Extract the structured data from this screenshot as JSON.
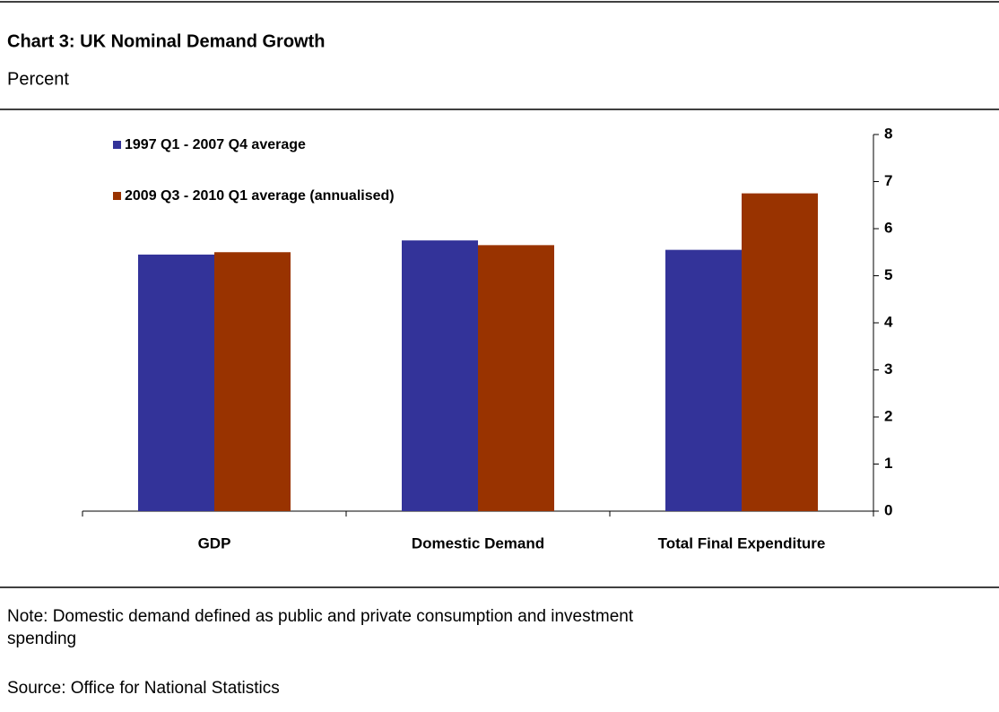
{
  "chart_data": {
    "type": "bar",
    "title": "Chart 3: UK Nominal Demand Growth",
    "subtitle": "Percent",
    "categories": [
      "GDP",
      "Domestic Demand",
      "Total Final Expenditure"
    ],
    "series": [
      {
        "name": "1997 Q1 - 2007 Q4 average",
        "color": "#333399",
        "values": [
          5.45,
          5.75,
          5.55
        ]
      },
      {
        "name": "2009 Q3 - 2010 Q1 average (annualised)",
        "color": "#993300",
        "values": [
          5.5,
          5.65,
          6.75
        ]
      }
    ],
    "ylim": [
      0,
      8
    ],
    "yticks": [
      0,
      1,
      2,
      3,
      4,
      5,
      6,
      7,
      8
    ],
    "y_axis_side": "right",
    "grid": false,
    "legend": "upper left",
    "note": "Note: Domestic demand defined as public and private consumption and investment spending",
    "source": "Source: Office for National Statistics"
  }
}
